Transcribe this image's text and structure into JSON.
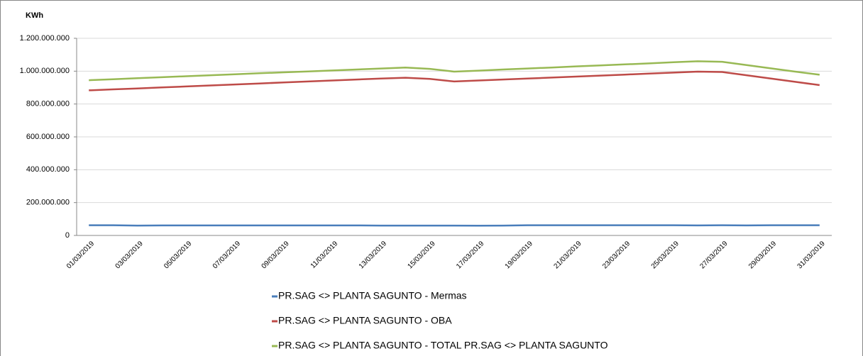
{
  "chart_data": {
    "type": "line",
    "y_label": "KWh",
    "categories": [
      "01/03/2019",
      null,
      "03/03/2019",
      null,
      "05/03/2019",
      null,
      "07/03/2019",
      null,
      "09/03/2019",
      null,
      "11/03/2019",
      null,
      "13/03/2019",
      null,
      "15/03/2019",
      null,
      "17/03/2019",
      null,
      "19/03/2019",
      null,
      "21/03/2019",
      null,
      "23/03/2019",
      null,
      "25/03/2019",
      null,
      "27/03/2019",
      null,
      "29/03/2019",
      null,
      "31/03/2019"
    ],
    "series": [
      {
        "name": "PR.SAG <> PLANTA SAGUNTO - Mermas",
        "color": "#4a7ebb",
        "values": [
          62000000,
          62000000,
          60000000,
          61000000,
          61000000,
          61000000,
          61000000,
          61000000,
          61000000,
          61000000,
          61000000,
          61000000,
          60000000,
          60000000,
          60000000,
          60000000,
          59000000,
          60000000,
          62000000,
          62000000,
          62000000,
          62000000,
          62000000,
          62000000,
          62000000,
          61000000,
          62000000,
          61000000,
          62000000,
          62000000,
          62000000
        ]
      },
      {
        "name": "PR.SAG <> PLANTA SAGUNTO - OBA",
        "color": "#be4b48",
        "values": [
          883000000,
          889000000,
          895000000,
          901000000,
          907000000,
          913000000,
          919000000,
          925000000,
          931000000,
          937000000,
          943000000,
          949000000,
          955000000,
          960000000,
          953000000,
          937000000,
          943000000,
          949000000,
          955000000,
          961000000,
          967000000,
          973000000,
          979000000,
          985000000,
          991000000,
          997000000,
          995000000,
          975000000,
          955000000,
          935000000,
          915000000
        ]
      },
      {
        "name": "PR.SAG <> PLANTA SAGUNTO - TOTAL PR.SAG <> PLANTA SAGUNTO",
        "color": "#98b954",
        "values": [
          945000000,
          951000000,
          957000000,
          963000000,
          969000000,
          975000000,
          981000000,
          987000000,
          993000000,
          998000000,
          1004000000,
          1010000000,
          1016000000,
          1022000000,
          1014000000,
          997000000,
          1003000000,
          1010000000,
          1016000000,
          1022000000,
          1029000000,
          1035000000,
          1041000000,
          1047000000,
          1054000000,
          1060000000,
          1057000000,
          1037000000,
          1017000000,
          997000000,
          978000000
        ]
      }
    ],
    "ylim": [
      0,
      1200000000
    ],
    "yticks": [
      0,
      {
        "value": 200000000,
        "label": "200.000.000"
      },
      {
        "value": 400000000,
        "label": "400.000.000"
      },
      {
        "value": 600000000,
        "label": "600.000.000"
      },
      {
        "value": 800000000,
        "label": "800.000.000"
      },
      {
        "value": 1000000000,
        "label": "1.000.000.000"
      },
      {
        "value": 1200000000,
        "label": "1.200.000.000"
      }
    ],
    "grid": true
  }
}
